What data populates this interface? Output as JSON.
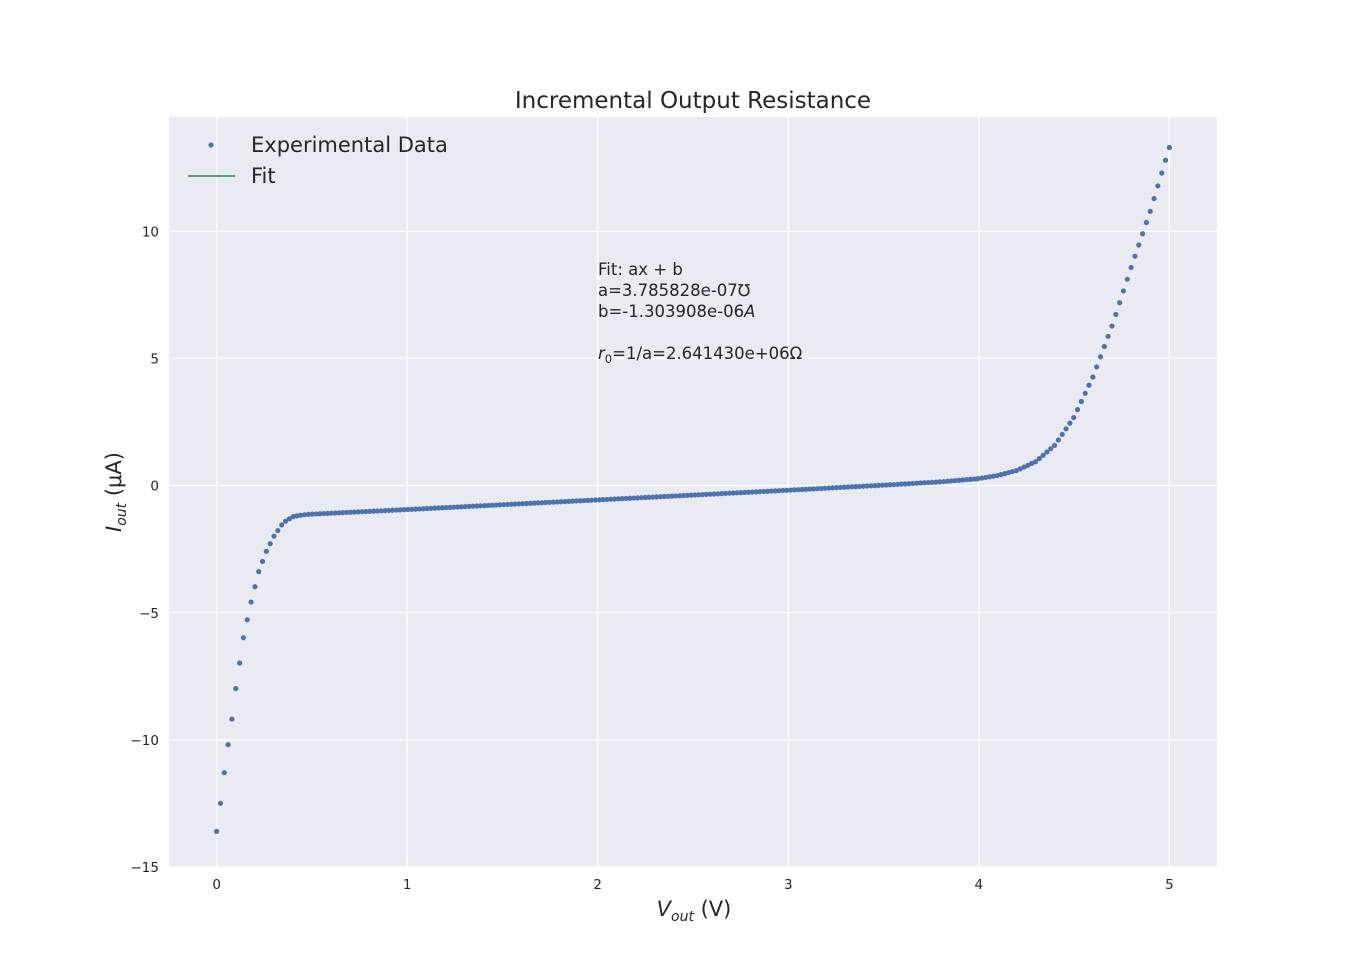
{
  "chart_data": {
    "type": "scatter",
    "title": "Incremental Output Resistance",
    "xlabel": {
      "main": "V",
      "sub": "out",
      "unit": " (V)"
    },
    "ylabel": {
      "main": "I",
      "sub": "out",
      "unit": " (μA)"
    },
    "xlim": [
      -0.25,
      5.25
    ],
    "ylim": [
      -15,
      14.5
    ],
    "xticks": [
      0,
      1,
      2,
      3,
      4,
      5
    ],
    "xtick_labels": [
      "0",
      "1",
      "2",
      "3",
      "4",
      "5"
    ],
    "yticks": [
      -15,
      -10,
      -5,
      0,
      5,
      10
    ],
    "ytick_labels": [
      "−15",
      "−10",
      "−5",
      "0",
      "5",
      "10"
    ],
    "grid": true,
    "legend": {
      "placement": "top-left",
      "entries": [
        {
          "label": "Experimental Data",
          "marker": "dot",
          "color": "#4c72b0"
        },
        {
          "label": "Fit",
          "marker": "line",
          "color": "#55a868"
        }
      ]
    },
    "annotation": {
      "line1": "Fit: ax + b",
      "line2": "a=3.785828e-07℧",
      "line3_prefix": "b=-1.303908e-06",
      "line3_unit": "A",
      "line4_r": "r",
      "line4_sub": "0",
      "line4_rest": "=1/a=2.641430e+06Ω"
    },
    "series": [
      {
        "name": "Experimental Data",
        "kind": "scatter",
        "color": "#4c72b0",
        "x_range": [
          0,
          5
        ],
        "n_points": 250,
        "shape_points": [
          [
            0.0,
            -13.6
          ],
          [
            0.02,
            -12.5
          ],
          [
            0.05,
            -10.7
          ],
          [
            0.08,
            -9.2
          ],
          [
            0.1,
            -8.0
          ],
          [
            0.14,
            -6.0
          ],
          [
            0.18,
            -4.6
          ],
          [
            0.22,
            -3.4
          ],
          [
            0.26,
            -2.6
          ],
          [
            0.3,
            -2.0
          ],
          [
            0.35,
            -1.45
          ],
          [
            0.4,
            -1.22
          ],
          [
            0.45,
            -1.15
          ],
          [
            0.5,
            -1.12
          ],
          [
            1.0,
            -0.94
          ],
          [
            2.0,
            -0.56
          ],
          [
            3.0,
            -0.18
          ],
          [
            3.5,
            0.02
          ],
          [
            3.8,
            0.15
          ],
          [
            4.0,
            0.28
          ],
          [
            4.1,
            0.4
          ],
          [
            4.2,
            0.6
          ],
          [
            4.3,
            0.95
          ],
          [
            4.4,
            1.6
          ],
          [
            4.5,
            2.7
          ],
          [
            4.6,
            4.3
          ],
          [
            4.7,
            6.3
          ],
          [
            4.8,
            8.6
          ],
          [
            4.9,
            10.8
          ],
          [
            5.0,
            13.3
          ]
        ]
      },
      {
        "name": "Fit",
        "kind": "line",
        "color": "#55a868",
        "x": [
          0.4,
          4.0
        ],
        "slope": 0.3785828,
        "intercept": -1.303908
      }
    ]
  }
}
